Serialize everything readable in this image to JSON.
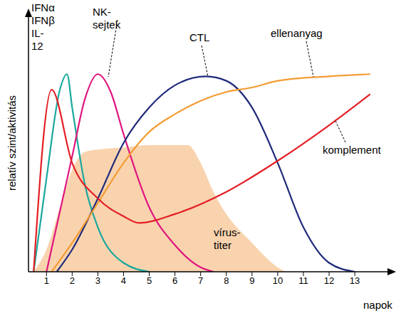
{
  "chart_data": {
    "type": "line",
    "x_label": "napok",
    "y_label": "relatív szint/aktivitás",
    "xlim": [
      0.3,
      14.3
    ],
    "xticks": [
      1,
      2,
      3,
      4,
      5,
      6,
      7,
      8,
      9,
      10,
      11,
      12,
      13
    ],
    "ylim": [
      0,
      116
    ],
    "tick_labels": "x",
    "grid": false,
    "series": [
      {
        "name": "vírus-titer",
        "type": "area",
        "color": "#f9d3ae",
        "x": [
          0.5,
          1,
          1.5,
          2,
          2.5,
          3,
          4,
          5,
          6,
          6.5,
          7,
          7.5,
          8,
          9,
          10,
          10.3
        ],
        "values": [
          0,
          10,
          28,
          46,
          54,
          55,
          56,
          57,
          57,
          57,
          49,
          36,
          26,
          13,
          2,
          0
        ]
      },
      {
        "name": "IFNα IFNβ IL-12",
        "type": "line",
        "color": "#19a89d",
        "x": [
          0.5,
          1,
          1.5,
          1.8,
          2,
          2.5,
          3,
          4,
          5
        ],
        "values": [
          0,
          42,
          81,
          89,
          74,
          39,
          20,
          4,
          0
        ]
      },
      {
        "name": "NK-sejtek",
        "type": "line",
        "color": "#e0157f",
        "x": [
          1,
          2,
          2.5,
          3,
          3.5,
          4,
          5,
          6,
          7,
          7.5
        ],
        "values": [
          0,
          52,
          78,
          89,
          81,
          62,
          29,
          12,
          2,
          0
        ]
      },
      {
        "name": "CTL",
        "type": "line",
        "color": "#1f2a7a",
        "x": [
          1.4,
          2,
          3,
          4,
          5,
          6,
          7.2,
          8,
          9,
          10,
          11,
          12,
          13
        ],
        "values": [
          0,
          10,
          33,
          58,
          74,
          84,
          88,
          86,
          74,
          49,
          20,
          4,
          0
        ]
      },
      {
        "name": "ellenanyag",
        "type": "line",
        "color": "#f39c32",
        "x": [
          1.2,
          2,
          3,
          4,
          5,
          6,
          7,
          8,
          9,
          10,
          12,
          13.6
        ],
        "values": [
          0,
          13,
          31,
          49,
          63,
          71,
          77,
          81,
          83,
          86,
          88,
          89
        ]
      },
      {
        "name": "komplement",
        "type": "line",
        "color": "#e31e24",
        "x": [
          0.5,
          1.2,
          2,
          3,
          4,
          4.6,
          6,
          8,
          10,
          12,
          13.6
        ],
        "values": [
          0,
          82,
          49,
          33,
          25,
          22,
          26,
          36,
          50,
          66,
          80
        ]
      }
    ]
  }
}
